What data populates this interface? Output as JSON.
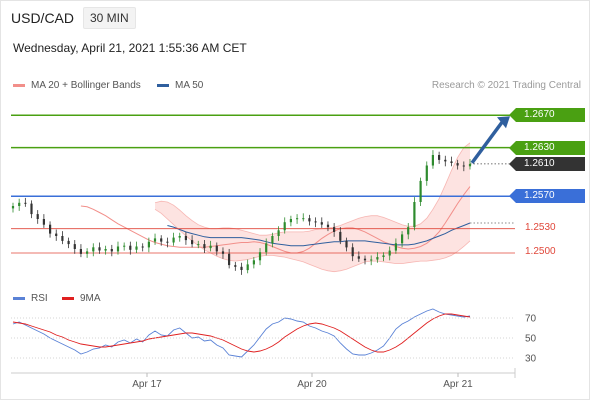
{
  "header": {
    "symbol": "USD/CAD",
    "timeframe": "30 MIN",
    "datetime": "Wednesday, April 21, 2021 1:55:36 AM CET",
    "credit": "Research © 2021 Trading Central"
  },
  "colors": {
    "bollinger": "#f28f8a",
    "ma50": "#2f5f9e",
    "resistance": "#4aa012",
    "pivot": "#3a6fd8",
    "support": "#e0473a",
    "last": "#333333",
    "candle_up": "#2e8b2e",
    "candle_down": "#333333",
    "rsi": "#5a82d6",
    "rsi_ma": "#e02020"
  },
  "chart_data": [
    {
      "type": "candlestick",
      "title": "USD/CAD",
      "timeframe": "30 MIN",
      "legend": [
        "MA 20 + Bollinger Bands",
        "MA 50"
      ],
      "x_ticks": [
        "Apr 17",
        "Apr 20",
        "Apr 21"
      ],
      "ylim": [
        1.2463,
        1.2695
      ],
      "levels": [
        {
          "label": "1.2670",
          "value": 1.267,
          "role": "resistance"
        },
        {
          "label": "1.2630",
          "value": 1.263,
          "role": "resistance"
        },
        {
          "label": "1.2610",
          "value": 1.261,
          "role": "last"
        },
        {
          "label": "1.2570",
          "value": 1.257,
          "role": "pivot"
        },
        {
          "label": "1.2530",
          "value": 1.253,
          "role": "support"
        },
        {
          "label": "1.2500",
          "value": 1.25,
          "role": "support"
        }
      ],
      "forecast_arrow": {
        "from": 1.261,
        "to": 1.267,
        "direction": "up"
      },
      "close_series": [
        1.2558,
        1.2562,
        1.2561,
        1.2548,
        1.2542,
        1.2535,
        1.2524,
        1.2521,
        1.2515,
        1.2511,
        1.2505,
        1.2499,
        1.2502,
        1.2507,
        1.2503,
        1.2505,
        1.2502,
        1.2508,
        1.2509,
        1.2504,
        1.2508,
        1.2507,
        1.2514,
        1.2518,
        1.2514,
        1.2513,
        1.2519,
        1.2521,
        1.2516,
        1.2511,
        1.2511,
        1.2506,
        1.2509,
        1.2502,
        1.2499,
        1.2485,
        1.2483,
        1.2479,
        1.2486,
        1.2491,
        1.2501,
        1.2512,
        1.2521,
        1.2528,
        1.2538,
        1.2542,
        1.2543,
        1.2543,
        1.2539,
        1.2538,
        1.2535,
        1.2532,
        1.2526,
        1.2515,
        1.2507,
        1.2496,
        1.2493,
        1.2491,
        1.2492,
        1.2495,
        1.2497,
        1.2503,
        1.2512,
        1.2523,
        1.2532,
        1.2563,
        1.2589,
        1.2608,
        1.2621,
        1.2615,
        1.2613,
        1.2611,
        1.2608,
        1.2607,
        1.261
      ],
      "ma20_series": [
        1.2558,
        1.2557,
        1.2554,
        1.255,
        1.2546,
        1.2541,
        1.2536,
        1.2532,
        1.2528,
        1.2524,
        1.252,
        1.2516,
        1.2513,
        1.2511,
        1.2509,
        1.2508,
        1.2507,
        1.2507,
        1.2507,
        1.2507,
        1.2507,
        1.2508,
        1.2509,
        1.251,
        1.2511,
        1.2512,
        1.2513,
        1.2513,
        1.2514,
        1.2513,
        1.2511,
        1.2508,
        1.2505,
        1.2502,
        1.25,
        1.25,
        1.2502,
        1.2506,
        1.2512,
        1.2518,
        1.2523,
        1.2527,
        1.253,
        1.2531,
        1.2531,
        1.2529,
        1.2526,
        1.2522,
        1.2518,
        1.2514,
        1.2511,
        1.2508,
        1.2506,
        1.2505,
        1.2506,
        1.2508,
        1.2512,
        1.2518,
        1.2526,
        1.2537,
        1.2549,
        1.2561,
        1.2572,
        1.2582
      ],
      "upper_band_series": [
        1.2562,
        1.2564,
        1.2563,
        1.2559,
        1.2553,
        1.2546,
        1.254,
        1.2535,
        1.2532,
        1.253,
        1.253,
        1.2531,
        1.2531,
        1.253,
        1.2528,
        1.2526,
        1.2524,
        1.2522,
        1.2522,
        1.2523,
        1.2525,
        1.2526,
        1.2526,
        1.2526,
        1.2526,
        1.2527,
        1.2529,
        1.253,
        1.2531,
        1.2532,
        1.2534,
        1.2537,
        1.254,
        1.2543,
        1.2545,
        1.2546,
        1.2546,
        1.2544,
        1.2541,
        1.2538,
        1.2535,
        1.2533,
        1.2533,
        1.2536,
        1.2543,
        1.2554,
        1.2567,
        1.2584,
        1.2602,
        1.2618,
        1.263,
        1.2636
      ],
      "lower_band_series": [
        1.2554,
        1.2549,
        1.2542,
        1.2535,
        1.2528,
        1.2521,
        1.2515,
        1.2509,
        1.2504,
        1.25,
        1.2496,
        1.2493,
        1.2491,
        1.249,
        1.2491,
        1.2492,
        1.2494,
        1.2496,
        1.2497,
        1.2497,
        1.2496,
        1.2495,
        1.2493,
        1.2491,
        1.2489,
        1.2486,
        1.2483,
        1.248,
        1.2478,
        1.2477,
        1.2478,
        1.248,
        1.2483,
        1.2486,
        1.2489,
        1.249,
        1.249,
        1.2489,
        1.2488,
        1.2487,
        1.2487,
        1.2488,
        1.2489,
        1.249,
        1.249,
        1.2491,
        1.2492,
        1.2494,
        1.2497,
        1.2502,
        1.2508,
        1.2515
      ],
      "ma50_series": [
        1.2534,
        1.2532,
        1.2529,
        1.2526,
        1.2524,
        1.2522,
        1.252,
        1.2519,
        1.2519,
        1.2519,
        1.2519,
        1.2519,
        1.2519,
        1.2518,
        1.2517,
        1.2516,
        1.2514,
        1.2512,
        1.2511,
        1.251,
        1.2509,
        1.2509,
        1.2509,
        1.251,
        1.2511,
        1.2512,
        1.2513,
        1.2514,
        1.2514,
        1.2515,
        1.2515,
        1.2515,
        1.2515,
        1.2514,
        1.2513,
        1.2512,
        1.2511,
        1.251,
        1.251,
        1.251,
        1.2511,
        1.2513,
        1.2515,
        1.2518,
        1.2521,
        1.2524,
        1.2528,
        1.2531,
        1.2534,
        1.2537
      ]
    },
    {
      "type": "line",
      "title": "RSI",
      "series_names": [
        "RSI",
        "9MA"
      ],
      "y_ticks": [
        "70",
        "50",
        "30"
      ],
      "ylim": [
        20,
        80
      ],
      "rsi_series": [
        64,
        66,
        63,
        60,
        57,
        54,
        50,
        47,
        44,
        41,
        38,
        34,
        36,
        39,
        40,
        43,
        41,
        46,
        48,
        45,
        49,
        46,
        53,
        57,
        53,
        52,
        58,
        60,
        55,
        50,
        51,
        47,
        48,
        43,
        40,
        33,
        32,
        31,
        37,
        43,
        51,
        59,
        64,
        66,
        70,
        69,
        67,
        66,
        62,
        60,
        57,
        55,
        52,
        45,
        39,
        34,
        33,
        33,
        35,
        38,
        42,
        50,
        59,
        64,
        67,
        71,
        74,
        77,
        79,
        76,
        74,
        73,
        72,
        71,
        72
      ],
      "rsi_ma_series": [
        66,
        65,
        64,
        62,
        60,
        58,
        56,
        53,
        51,
        48,
        46,
        44,
        43,
        42,
        41,
        41,
        42,
        43,
        44,
        45,
        46,
        47,
        49,
        50,
        51,
        52,
        53,
        54,
        55,
        55,
        54,
        53,
        52,
        50,
        48,
        45,
        42,
        39,
        37,
        36,
        37,
        39,
        42,
        46,
        51,
        55,
        59,
        62,
        64,
        65,
        64,
        62,
        60,
        57,
        53,
        49,
        45,
        41,
        38,
        36,
        36,
        38,
        41,
        45,
        50,
        55,
        60,
        65,
        69,
        72,
        74,
        74,
        73,
        72,
        71
      ]
    }
  ]
}
